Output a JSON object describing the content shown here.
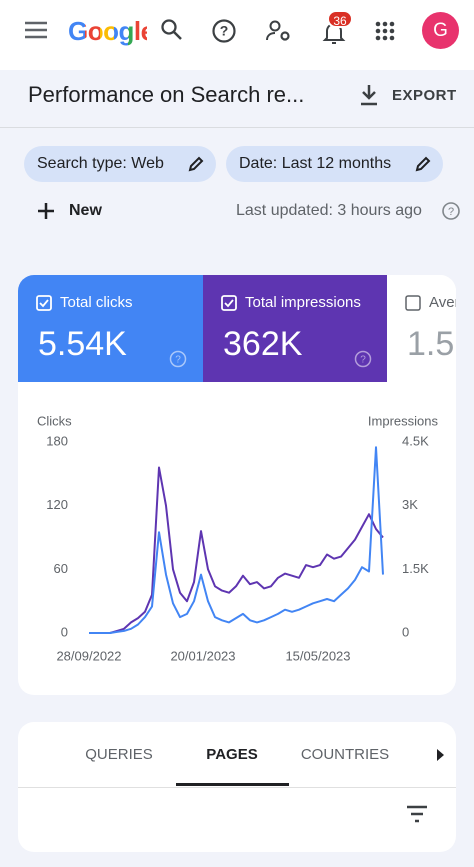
{
  "top_bar": {
    "logo": "Google",
    "notification_count": "36",
    "avatar_initial": "G"
  },
  "header": {
    "title": "Performance on Search re...",
    "export": "EXPORT"
  },
  "filters": [
    "Search type: Web",
    "Date: Last 12 months"
  ],
  "new_button": "New",
  "last_updated": "Last updated: 3 hours ago",
  "metric_cards": [
    {
      "label": "Total clicks",
      "value": "5.54K"
    },
    {
      "label": "Total impressions",
      "value": "362K"
    },
    {
      "label": "Aver",
      "value": "1.5"
    }
  ],
  "chart_data": {
    "type": "line",
    "ylabel": "Clicks",
    "y2label": "Impressions",
    "x": [
      "28/09/2022",
      "05/10/2022",
      "12/10/2022",
      "19/10/2022",
      "26/10/2022",
      "02/11/2022",
      "09/11/2022",
      "16/11/2022",
      "23/11/2022",
      "30/11/2022",
      "07/12/2022",
      "14/12/2022",
      "21/12/2022",
      "28/12/2022",
      "04/01/2023",
      "11/01/2023",
      "18/01/2023",
      "25/01/2023",
      "01/02/2023",
      "08/02/2023",
      "15/02/2023",
      "22/02/2023",
      "01/03/2023",
      "08/03/2023",
      "15/03/2023",
      "22/03/2023",
      "29/03/2023",
      "05/04/2023",
      "12/04/2023",
      "19/04/2023",
      "26/04/2023",
      "03/05/2023",
      "10/05/2023",
      "17/05/2023",
      "24/05/2023",
      "31/05/2023",
      "07/06/2023",
      "14/06/2023",
      "21/06/2023",
      "28/06/2023",
      "05/07/2023",
      "12/07/2023",
      "19/07/2023"
    ],
    "series": [
      {
        "color": "#5e35b1",
        "axis": "y2",
        "values": [
          0,
          0,
          0,
          0,
          50,
          100,
          250,
          350,
          500,
          900,
          3900,
          3000,
          1500,
          950,
          750,
          1200,
          2400,
          1500,
          1100,
          1000,
          950,
          1100,
          1350,
          1150,
          1200,
          1050,
          1100,
          1300,
          1400,
          1350,
          1300,
          1600,
          1550,
          1600,
          1850,
          1750,
          1800,
          2000,
          2200,
          2500,
          2800,
          2450,
          2250
        ]
      },
      {
        "color": "#4285f4",
        "values": [
          0,
          0,
          0,
          0,
          1,
          2,
          4,
          8,
          15,
          25,
          95,
          55,
          28,
          15,
          18,
          30,
          55,
          30,
          15,
          12,
          10,
          14,
          18,
          12,
          10,
          12,
          15,
          18,
          22,
          20,
          22,
          25,
          28,
          30,
          32,
          30,
          36,
          42,
          50,
          62,
          58,
          175,
          55
        ]
      }
    ],
    "xlim": [
      "28/09/2022",
      "19/07/2023"
    ],
    "xticks": [
      "28/09/2022",
      "20/01/2023",
      "15/05/2023"
    ],
    "ylim": [
      0,
      180
    ],
    "yticks": [
      0,
      60,
      120,
      180
    ],
    "y2lim": [
      0,
      4500
    ],
    "y2ticks": [
      0,
      {
        "value": 1500,
        "label": "1.5K"
      },
      {
        "value": 3000,
        "label": "3K"
      },
      {
        "value": 4500,
        "label": "4.5K"
      }
    ]
  },
  "tabs": [
    "QUERIES",
    "PAGES",
    "COUNTRIES"
  ]
}
